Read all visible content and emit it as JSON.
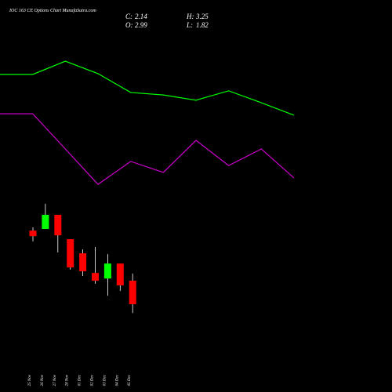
{
  "chart_data": {
    "type": "candlestick",
    "title": "IOC 163 CE Options Chart MunafaSutra.com",
    "summary": [
      {
        "label": "C:",
        "value": 2.14
      },
      {
        "label": "H:",
        "value": 3.25
      },
      {
        "label": "O:",
        "value": 2.99
      },
      {
        "label": "L:",
        "value": 1.82
      }
    ],
    "categories": [
      "25 Nov",
      "26 Nov",
      "27 Nov",
      "28 Nov",
      "01 Dec",
      "02 Dec",
      "03 Dec",
      "04 Dec",
      "05 Dec"
    ],
    "open": [
      4.8,
      4.86,
      5.37,
      4.49,
      3.98,
      3.27,
      3.07,
      3.61,
      2.99
    ],
    "high": [
      4.92,
      5.77,
      5.37,
      4.49,
      4.12,
      4.21,
      3.95,
      3.61,
      3.25
    ],
    "low": [
      4.41,
      4.86,
      4.01,
      3.39,
      3.16,
      2.88,
      2.45,
      2.62,
      1.82
    ],
    "close": [
      4.6,
      5.37,
      4.63,
      3.47,
      3.33,
      2.99,
      3.61,
      2.82,
      2.14
    ],
    "up_color": "#00ff00",
    "down_color": "#ff0000",
    "ylim": [
      -1.03,
      13.13
    ],
    "lines": [
      {
        "color": "#00ff00",
        "x": [
          0,
          1,
          2,
          3,
          4,
          5,
          6,
          7,
          8,
          9
        ],
        "values": [
          10.44,
          10.44,
          10.92,
          10.47,
          9.79,
          9.7,
          9.51,
          9.85,
          9.42,
          8.97
        ]
      },
      {
        "color": "#cc00cc",
        "x": [
          0,
          1,
          2,
          3,
          4,
          5,
          6,
          7,
          8,
          9
        ],
        "values": [
          9.02,
          9.02,
          7.75,
          6.47,
          7.3,
          6.9,
          8.06,
          7.15,
          7.75,
          6.7
        ]
      }
    ],
    "xlim": [
      0,
      12
    ]
  }
}
